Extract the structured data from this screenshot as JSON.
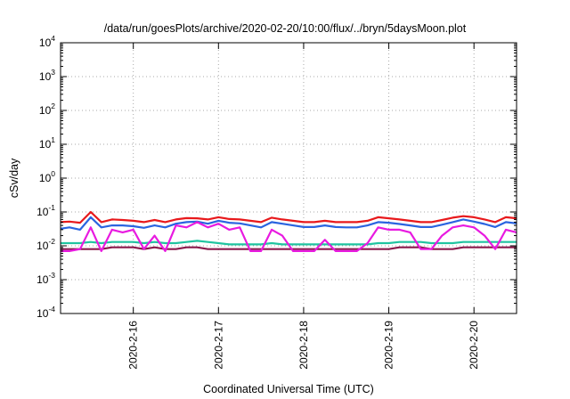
{
  "chart_data": {
    "type": "line",
    "title": "/data/run/goesPlots/archive/2020-02-20/10:00/flux/../bryn/5daysMoon.plot",
    "xlabel": "Coordinated Universal Time (UTC)",
    "ylabel": "cSv/day",
    "y_scale": "log",
    "ylim": [
      0.0001,
      10000
    ],
    "y_ticks": [
      {
        "base": "10",
        "exp": "4"
      },
      {
        "base": "10",
        "exp": "3"
      },
      {
        "base": "10",
        "exp": "2"
      },
      {
        "base": "10",
        "exp": "1"
      },
      {
        "base": "10",
        "exp": "0"
      },
      {
        "base": "10",
        "exp": "-1"
      },
      {
        "base": "10",
        "exp": "-2"
      },
      {
        "base": "10",
        "exp": "-3"
      },
      {
        "base": "10",
        "exp": "-4"
      }
    ],
    "xlim": [
      "2020-02-15 03:30",
      "2020-02-20 12:00"
    ],
    "x_ticks": [
      "2020-2-16",
      "2020-2-17",
      "2020-2-18",
      "2020-2-19",
      "2020-2-20"
    ],
    "x_tick_dates": [
      "2020-02-16",
      "2020-02-17",
      "2020-02-18",
      "2020-02-19",
      "2020-02-20"
    ],
    "grid": true,
    "legend": "none",
    "x": [
      "2020-02-15 03:30",
      "2020-02-15 06:00",
      "2020-02-15 09:00",
      "2020-02-15 12:00",
      "2020-02-15 15:00",
      "2020-02-15 18:00",
      "2020-02-15 21:00",
      "2020-02-16 00:00",
      "2020-02-16 03:00",
      "2020-02-16 06:00",
      "2020-02-16 09:00",
      "2020-02-16 12:00",
      "2020-02-16 15:00",
      "2020-02-16 18:00",
      "2020-02-16 21:00",
      "2020-02-17 00:00",
      "2020-02-17 03:00",
      "2020-02-17 06:00",
      "2020-02-17 09:00",
      "2020-02-17 12:00",
      "2020-02-17 15:00",
      "2020-02-17 18:00",
      "2020-02-17 21:00",
      "2020-02-18 00:00",
      "2020-02-18 03:00",
      "2020-02-18 06:00",
      "2020-02-18 09:00",
      "2020-02-18 12:00",
      "2020-02-18 15:00",
      "2020-02-18 18:00",
      "2020-02-18 21:00",
      "2020-02-19 00:00",
      "2020-02-19 03:00",
      "2020-02-19 06:00",
      "2020-02-19 09:00",
      "2020-02-19 12:00",
      "2020-02-19 15:00",
      "2020-02-19 18:00",
      "2020-02-19 21:00",
      "2020-02-20 00:00",
      "2020-02-20 03:00",
      "2020-02-20 06:00",
      "2020-02-20 09:00",
      "2020-02-20 12:00"
    ],
    "series": [
      {
        "color": "#e8191c",
        "values": [
          0.05,
          0.052,
          0.048,
          0.1,
          0.05,
          0.06,
          0.058,
          0.055,
          0.05,
          0.058,
          0.05,
          0.06,
          0.066,
          0.065,
          0.06,
          0.07,
          0.062,
          0.06,
          0.055,
          0.05,
          0.068,
          0.06,
          0.055,
          0.05,
          0.05,
          0.055,
          0.05,
          0.05,
          0.05,
          0.055,
          0.07,
          0.065,
          0.06,
          0.055,
          0.05,
          0.05,
          0.058,
          0.068,
          0.075,
          0.07,
          0.06,
          0.05,
          0.07,
          0.065
        ]
      },
      {
        "color": "#2a64e0",
        "values": [
          0.032,
          0.035,
          0.03,
          0.07,
          0.035,
          0.04,
          0.04,
          0.038,
          0.034,
          0.04,
          0.035,
          0.045,
          0.05,
          0.052,
          0.045,
          0.055,
          0.048,
          0.046,
          0.04,
          0.035,
          0.05,
          0.045,
          0.04,
          0.036,
          0.036,
          0.04,
          0.036,
          0.035,
          0.035,
          0.04,
          0.05,
          0.048,
          0.044,
          0.04,
          0.036,
          0.036,
          0.042,
          0.05,
          0.06,
          0.052,
          0.044,
          0.036,
          0.05,
          0.046
        ]
      },
      {
        "color": "#20c4a0",
        "values": [
          0.012,
          0.012,
          0.012,
          0.013,
          0.012,
          0.013,
          0.013,
          0.013,
          0.012,
          0.013,
          0.012,
          0.012,
          0.013,
          0.014,
          0.013,
          0.012,
          0.011,
          0.011,
          0.011,
          0.011,
          0.012,
          0.011,
          0.011,
          0.011,
          0.011,
          0.011,
          0.011,
          0.011,
          0.011,
          0.011,
          0.012,
          0.012,
          0.013,
          0.013,
          0.013,
          0.012,
          0.012,
          0.012,
          0.013,
          0.013,
          0.013,
          0.013,
          0.013,
          0.013
        ]
      },
      {
        "color": "#8a1a4c",
        "values": [
          0.008,
          0.008,
          0.008,
          0.008,
          0.008,
          0.009,
          0.009,
          0.009,
          0.008,
          0.009,
          0.008,
          0.008,
          0.009,
          0.009,
          0.008,
          0.008,
          0.008,
          0.008,
          0.008,
          0.008,
          0.008,
          0.008,
          0.008,
          0.008,
          0.008,
          0.008,
          0.008,
          0.008,
          0.008,
          0.008,
          0.008,
          0.008,
          0.009,
          0.009,
          0.009,
          0.008,
          0.008,
          0.008,
          0.009,
          0.009,
          0.009,
          0.009,
          0.009,
          0.009
        ]
      },
      {
        "color": "#e81ae0",
        "values": [
          0.007,
          0.007,
          0.008,
          0.035,
          0.007,
          0.03,
          0.025,
          0.03,
          0.008,
          0.02,
          0.007,
          0.04,
          0.035,
          0.05,
          0.035,
          0.045,
          0.03,
          0.035,
          0.007,
          0.007,
          0.03,
          0.02,
          0.007,
          0.007,
          0.007,
          0.015,
          0.007,
          0.007,
          0.007,
          0.012,
          0.035,
          0.03,
          0.03,
          0.025,
          0.008,
          0.008,
          0.02,
          0.035,
          0.04,
          0.035,
          0.02,
          0.008,
          0.03,
          0.025
        ]
      }
    ]
  }
}
